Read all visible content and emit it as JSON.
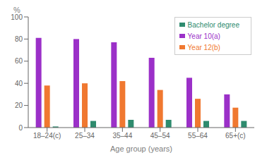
{
  "chart_data": {
    "type": "bar",
    "xlabel": "Age group (years)",
    "ylabel": "%",
    "categories": [
      "18–24(c)",
      "25–34",
      "35–44",
      "45–54",
      "55–64",
      "65+(c)"
    ],
    "series": [
      {
        "name": "Year 10(a)",
        "color": "#9b30c8",
        "values": [
          81,
          80,
          77,
          63,
          45,
          30
        ]
      },
      {
        "name": "Year 12(b)",
        "color": "#f07830",
        "values": [
          38,
          40,
          42,
          34,
          26,
          18
        ]
      },
      {
        "name": "Bachelor degree",
        "color": "#2e8b6e",
        "values": [
          1,
          6,
          7,
          7,
          6,
          6
        ]
      }
    ],
    "ylim": [
      0,
      100
    ],
    "yticks": [
      0,
      20,
      40,
      60,
      80,
      100
    ],
    "legend": "upper right"
  }
}
